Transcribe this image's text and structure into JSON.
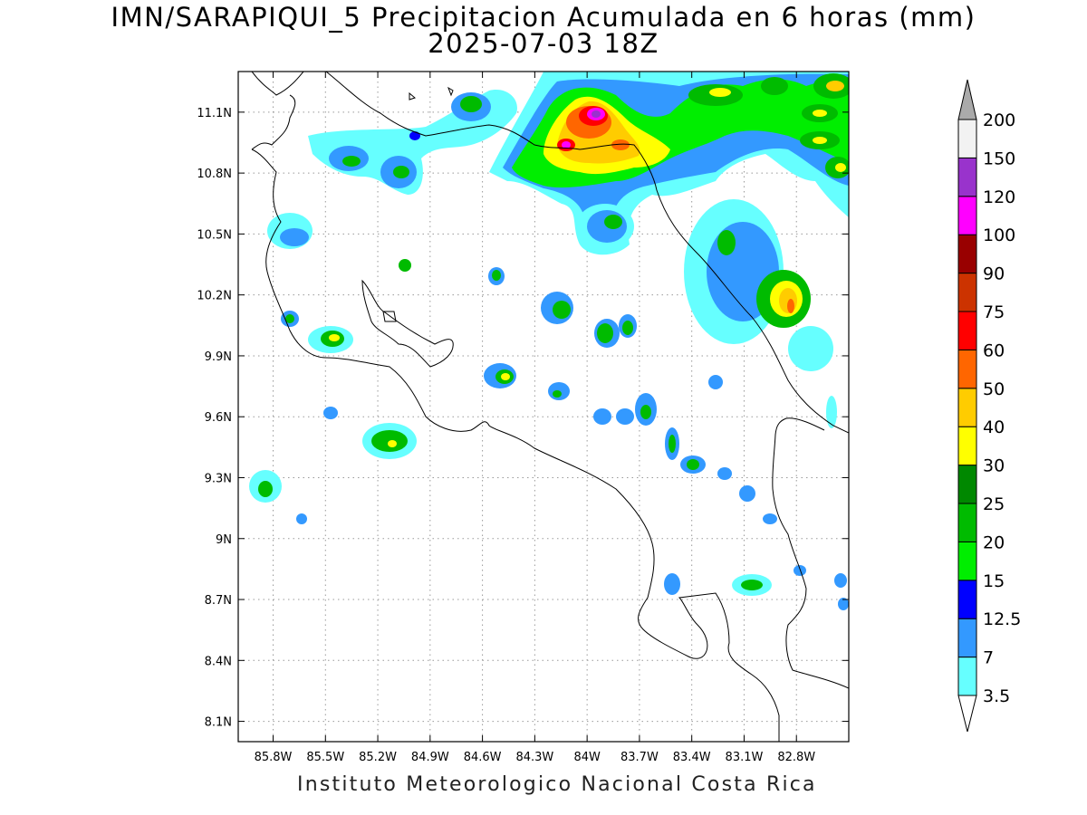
{
  "title_line1": "IMN/SARAPIQUI_5 Precipitacion Acumulada en 6 horas (mm)",
  "title_line2": "2025-07-03 18Z",
  "footer": "Instituto Meteorologico Nacional Costa Rica",
  "map": {
    "lon_range": [
      -86.0,
      -82.5
    ],
    "lat_range": [
      8.0,
      11.3
    ],
    "lon_ticks": [
      {
        "value": -85.8,
        "label": "85.8W"
      },
      {
        "value": -85.5,
        "label": "85.5W"
      },
      {
        "value": -85.2,
        "label": "85.2W"
      },
      {
        "value": -84.9,
        "label": "84.9W"
      },
      {
        "value": -84.6,
        "label": "84.6W"
      },
      {
        "value": -84.3,
        "label": "84.3W"
      },
      {
        "value": -84.0,
        "label": "84W"
      },
      {
        "value": -83.7,
        "label": "83.7W"
      },
      {
        "value": -83.4,
        "label": "83.4W"
      },
      {
        "value": -83.1,
        "label": "83.1W"
      },
      {
        "value": -82.8,
        "label": "82.8W"
      }
    ],
    "lat_ticks": [
      {
        "value": 11.1,
        "label": "11.1N"
      },
      {
        "value": 10.8,
        "label": "10.8N"
      },
      {
        "value": 10.5,
        "label": "10.5N"
      },
      {
        "value": 10.2,
        "label": "10.2N"
      },
      {
        "value": 9.9,
        "label": "9.9N"
      },
      {
        "value": 9.6,
        "label": "9.6N"
      },
      {
        "value": 9.3,
        "label": "9.3N"
      },
      {
        "value": 9.0,
        "label": "9N"
      },
      {
        "value": 8.7,
        "label": "8.7N"
      },
      {
        "value": 8.4,
        "label": "8.4N"
      },
      {
        "value": 8.1,
        "label": "8.1N"
      }
    ],
    "grid": "dotted"
  },
  "colorbar": {
    "unit": "mm",
    "levels": [
      {
        "label": "3.5",
        "color": "#66ffff"
      },
      {
        "label": "7",
        "color": "#3399ff"
      },
      {
        "label": "12.5",
        "color": "#0000ff"
      },
      {
        "label": "15",
        "color": "#00ee00"
      },
      {
        "label": "20",
        "color": "#00bb00"
      },
      {
        "label": "25",
        "color": "#008800"
      },
      {
        "label": "30",
        "color": "#ffff00"
      },
      {
        "label": "40",
        "color": "#ffcc00"
      },
      {
        "label": "50",
        "color": "#ff6600"
      },
      {
        "label": "60",
        "color": "#ff0000"
      },
      {
        "label": "75",
        "color": "#cc3300"
      },
      {
        "label": "90",
        "color": "#990000"
      },
      {
        "label": "100",
        "color": "#ff00ff"
      },
      {
        "label": "120",
        "color": "#9933cc"
      },
      {
        "label": "150",
        "color": "#f2f2f2"
      },
      {
        "label": "200",
        "color": "#aaaaaa"
      }
    ]
  },
  "precip_cells": [
    {
      "lon": -84.0,
      "lat": 10.95,
      "max_mm": 150
    },
    {
      "lon": -84.15,
      "lat": 10.92,
      "max_mm": 120
    },
    {
      "lon": -83.9,
      "lat": 10.88,
      "max_mm": 40
    },
    {
      "lon": -83.55,
      "lat": 10.95,
      "max_mm": 30
    },
    {
      "lon": -83.35,
      "lat": 11.15,
      "max_mm": 30
    },
    {
      "lon": -82.8,
      "lat": 10.95,
      "max_mm": 30
    },
    {
      "lon": -82.65,
      "lat": 11.2,
      "max_mm": 40
    },
    {
      "lon": -82.95,
      "lat": 10.25,
      "max_mm": 50
    },
    {
      "lon": -83.25,
      "lat": 10.5,
      "max_mm": 25
    },
    {
      "lon": -83.9,
      "lat": 10.58,
      "max_mm": 25
    },
    {
      "lon": -84.6,
      "lat": 11.12,
      "max_mm": 25
    },
    {
      "lon": -85.45,
      "lat": 10.9,
      "max_mm": 20
    },
    {
      "lon": -84.95,
      "lat": 10.82,
      "max_mm": 15
    },
    {
      "lon": -85.5,
      "lat": 10.0,
      "max_mm": 30
    },
    {
      "lon": -84.45,
      "lat": 9.8,
      "max_mm": 40
    },
    {
      "lon": -85.1,
      "lat": 9.49,
      "max_mm": 30
    },
    {
      "lon": -85.8,
      "lat": 9.25,
      "max_mm": 25
    },
    {
      "lon": -84.15,
      "lat": 10.13,
      "max_mm": 20
    },
    {
      "lon": -83.88,
      "lat": 10.02,
      "max_mm": 25
    },
    {
      "lon": -83.38,
      "lat": 9.37,
      "max_mm": 30
    }
  ]
}
